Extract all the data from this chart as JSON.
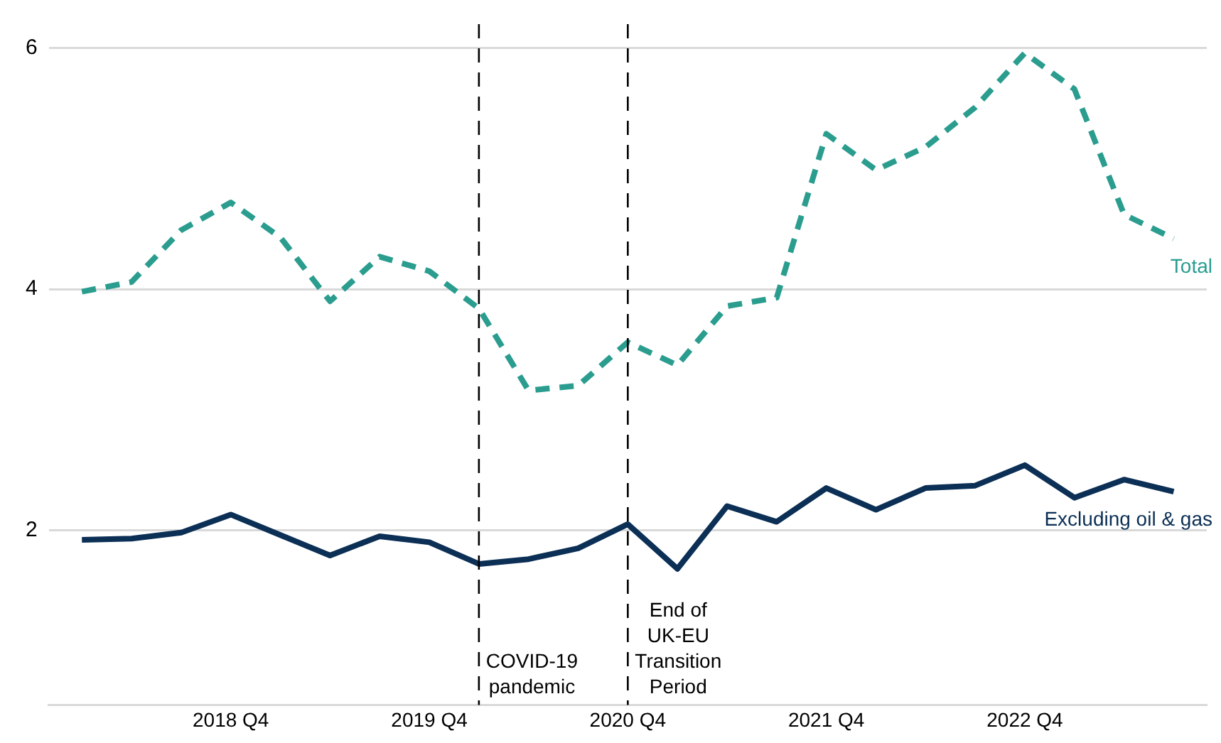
{
  "chart_data": {
    "type": "line",
    "x": [
      "2018-01",
      "2018-04",
      "2018-07",
      "2018-10",
      "2019-01",
      "2019-04",
      "2019-07",
      "2019-10",
      "2020-01",
      "2020-04",
      "2020-07",
      "2020-10",
      "2021-01",
      "2021-04",
      "2021-07",
      "2021-10",
      "2022-01",
      "2022-04",
      "2022-07",
      "2022-10",
      "2023-01",
      "2023-04",
      "2023-07"
    ],
    "series": [
      {
        "name": "Total",
        "color": "#2a9d8f",
        "line_style": "dashed",
        "values": [
          3.98,
          4.06,
          4.49,
          4.72,
          4.43,
          3.9,
          4.27,
          4.15,
          3.84,
          3.16,
          3.2,
          3.56,
          3.37,
          3.86,
          3.93,
          5.29,
          4.99,
          5.18,
          5.51,
          5.96,
          5.66,
          4.62,
          4.42
        ]
      },
      {
        "name": "Excluding oil & gas",
        "color": "#0b2f55",
        "line_style": "solid",
        "values": [
          1.92,
          1.93,
          1.98,
          2.13,
          1.96,
          1.79,
          1.95,
          1.9,
          1.72,
          1.76,
          1.85,
          2.05,
          1.68,
          2.2,
          2.07,
          2.35,
          2.17,
          2.35,
          2.37,
          2.54,
          2.27,
          2.42,
          2.32
        ]
      }
    ],
    "xlim": [
      "2017-11",
      "2023-09"
    ],
    "xticks": [
      {
        "value": "2018-10",
        "label": "2018 Q4"
      },
      {
        "value": "2019-10",
        "label": "2019 Q4"
      },
      {
        "value": "2020-10",
        "label": "2020 Q4"
      },
      {
        "value": "2021-10",
        "label": "2021 Q4"
      },
      {
        "value": "2022-10",
        "label": "2022 Q4"
      }
    ],
    "ylim": [
      0.55,
      6.2
    ],
    "yticks": [
      2,
      4,
      6
    ],
    "ref_lines": [
      {
        "axis": "x",
        "value": "2020-01",
        "label": "COVID-19 pandemic",
        "color": "#000000",
        "line_style": "dashed"
      },
      {
        "axis": "x",
        "value": "2020-10",
        "label": "End of UK-EU Transition Period",
        "color": "#000000",
        "line_style": "dashed"
      }
    ],
    "grid": "y",
    "legend": false,
    "marker": "none"
  }
}
